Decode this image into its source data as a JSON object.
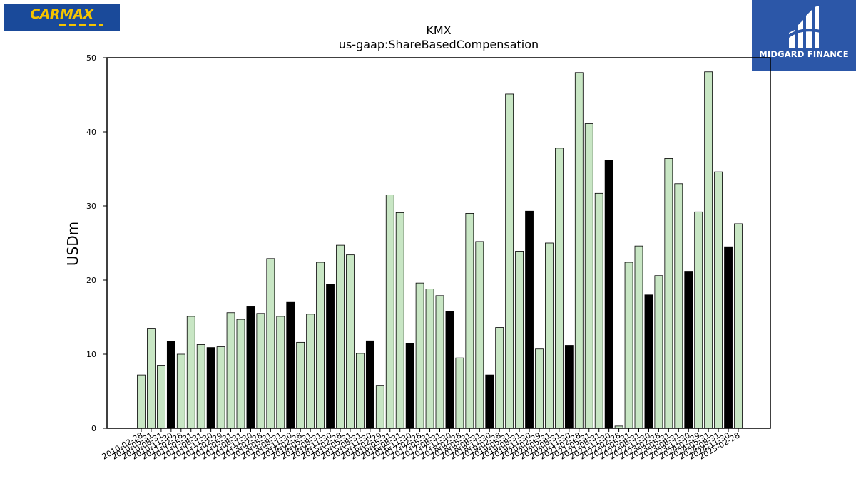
{
  "branding": {
    "left_logo_text": "CARMAX",
    "right_logo_text": "MIDGARD FINANCE",
    "left_logo_bg": "#1a4a9a",
    "left_logo_fg": "#f5c400",
    "right_logo_bg": "#2c57a8"
  },
  "chart_data": {
    "type": "bar",
    "title": "KMX",
    "subtitle": "us-gaap:ShareBasedCompensation",
    "ylabel": "USDm",
    "xlabel": "",
    "ylim": [
      0,
      50
    ],
    "yticks": [
      "0",
      "10",
      "20",
      "30",
      "40",
      "50"
    ],
    "grid": false,
    "colors": {
      "quarter": "#c8e6c4",
      "annual": "#000000",
      "edge": "#000000"
    },
    "categories": [
      "2010-02-28",
      "2010-05-31",
      "2010-08-31",
      "2010-11-30",
      "2011-02-28",
      "2011-05-31",
      "2011-08-31",
      "2011-11-30",
      "2012-02-29",
      "2012-05-31",
      "2012-08-31",
      "2012-11-30",
      "2013-02-28",
      "2013-05-31",
      "2013-08-31",
      "2013-11-30",
      "2014-02-28",
      "2014-05-31",
      "2014-08-31",
      "2014-11-30",
      "2015-02-28",
      "2015-05-31",
      "2015-08-31",
      "2015-11-30",
      "2016-02-29",
      "2016-05-31",
      "2016-08-31",
      "2016-11-30",
      "2017-02-28",
      "2017-05-31",
      "2017-08-31",
      "2017-11-30",
      "2018-02-28",
      "2018-05-31",
      "2018-08-31",
      "2018-11-30",
      "2019-02-28",
      "2019-05-31",
      "2019-08-31",
      "2019-11-30",
      "2020-02-29",
      "2020-05-31",
      "2020-08-31",
      "2020-11-30",
      "2021-02-28",
      "2021-05-31",
      "2021-08-31",
      "2021-11-30",
      "2022-02-28",
      "2022-05-31",
      "2022-08-31",
      "2022-11-30",
      "2023-02-28",
      "2023-05-31",
      "2023-08-31",
      "2023-11-30",
      "2024-02-29",
      "2024-05-31",
      "2024-08-31",
      "2024-11-30",
      "2025-02-28"
    ],
    "values": [
      7.2,
      13.5,
      8.5,
      11.7,
      10.0,
      15.1,
      11.3,
      10.9,
      11.0,
      15.6,
      14.7,
      16.4,
      15.5,
      22.9,
      15.1,
      17.0,
      11.6,
      15.4,
      22.4,
      19.4,
      24.7,
      23.4,
      10.1,
      11.8,
      5.8,
      31.5,
      29.1,
      11.5,
      19.6,
      18.8,
      17.9,
      15.8,
      9.5,
      29.0,
      25.2,
      7.2,
      13.6,
      45.1,
      23.9,
      29.3,
      10.7,
      25.0,
      37.8,
      11.2,
      48.0,
      41.1,
      31.7,
      36.2,
      0.3,
      22.4,
      24.6,
      18.0,
      20.6,
      36.4,
      33.0,
      21.1,
      29.2,
      48.1,
      34.6,
      24.5,
      27.6
    ],
    "bar_kind": [
      "q",
      "q",
      "q",
      "a",
      "q",
      "q",
      "q",
      "a",
      "q",
      "q",
      "q",
      "a",
      "q",
      "q",
      "q",
      "a",
      "q",
      "q",
      "q",
      "a",
      "q",
      "q",
      "q",
      "a",
      "q",
      "q",
      "q",
      "a",
      "q",
      "q",
      "q",
      "a",
      "q",
      "q",
      "q",
      "a",
      "q",
      "q",
      "q",
      "a",
      "q",
      "q",
      "q",
      "a",
      "q",
      "q",
      "q",
      "a",
      "q",
      "q",
      "q",
      "a",
      "q",
      "q",
      "q",
      "a",
      "q",
      "q",
      "q",
      "a",
      "q"
    ]
  }
}
